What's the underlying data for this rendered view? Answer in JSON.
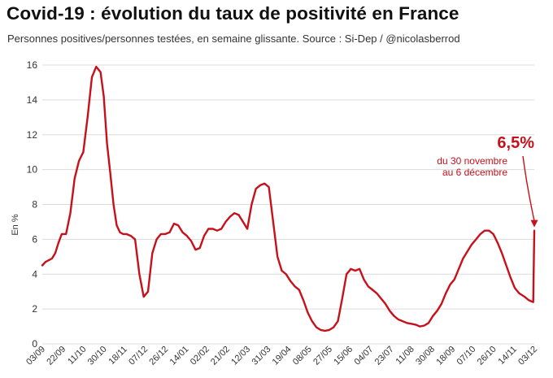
{
  "title": "Covid-19 : évolution du taux de positivité en France",
  "subtitle": "Personnes positives/personnes testées, en semaine glissante. Source : Si-Dep / @nicolasberrod",
  "chart_data": {
    "type": "line",
    "title": "Covid-19 : évolution du taux de positivité en France",
    "xlabel": "",
    "ylabel": "En %",
    "ylim": [
      0,
      16
    ],
    "yticks": [
      0,
      2,
      4,
      6,
      8,
      10,
      12,
      14,
      16
    ],
    "grid": "horizontal",
    "x_tick_labels": [
      "03/09",
      "22/09",
      "11/10",
      "30/10",
      "18/11",
      "07/12",
      "26/12",
      "14/01",
      "02/02",
      "21/02",
      "12/03",
      "31/03",
      "19/04",
      "08/05",
      "27/05",
      "15/06",
      "04/07",
      "23/07",
      "11/08",
      "30/08",
      "18/09",
      "07/10",
      "26/10",
      "14/11",
      "03/12"
    ],
    "line_color": "#c8101a",
    "series": [
      {
        "name": "Taux de positivité",
        "x_unit": "days since 03/09",
        "x": [
          0,
          3,
          6,
          9,
          12,
          15,
          18,
          22,
          26,
          30,
          34,
          38,
          42,
          46,
          50,
          54,
          57,
          60,
          63,
          66,
          69,
          72,
          75,
          78,
          82,
          86,
          90,
          94,
          98,
          102,
          106,
          110,
          114,
          118,
          122,
          126,
          130,
          134,
          138,
          142,
          146,
          150,
          154,
          158,
          162,
          166,
          170,
          174,
          178,
          182,
          186,
          190,
          194,
          198,
          202,
          206,
          210,
          214,
          218,
          222,
          226,
          230,
          234,
          238,
          242,
          246,
          250,
          254,
          258,
          262,
          266,
          270,
          274,
          278,
          282,
          286,
          290,
          294,
          298,
          302,
          306,
          310,
          314,
          318,
          322,
          326,
          330,
          334,
          338,
          342,
          346,
          350,
          354,
          358,
          362,
          366,
          370,
          374,
          378,
          382,
          386,
          390,
          394,
          398,
          402,
          406,
          410,
          414,
          418,
          422,
          426,
          430,
          434,
          438,
          442,
          447,
          451,
          455,
          456
        ],
        "y": [
          4.5,
          4.7,
          4.8,
          4.9,
          5.2,
          5.8,
          6.3,
          6.3,
          7.5,
          9.5,
          10.5,
          11.0,
          13.0,
          15.3,
          15.9,
          15.6,
          14.2,
          11.5,
          9.8,
          8.0,
          6.8,
          6.4,
          6.3,
          6.3,
          6.2,
          6.0,
          4.0,
          2.7,
          3.0,
          5.2,
          6.0,
          6.3,
          6.3,
          6.4,
          6.9,
          6.8,
          6.4,
          6.2,
          5.9,
          5.4,
          5.5,
          6.2,
          6.6,
          6.6,
          6.5,
          6.6,
          7.0,
          7.3,
          7.5,
          7.4,
          7.0,
          6.6,
          8.0,
          8.9,
          9.1,
          9.2,
          9.0,
          7.0,
          5.0,
          4.2,
          4.0,
          3.6,
          3.3,
          3.1,
          2.5,
          1.8,
          1.3,
          0.95,
          0.8,
          0.75,
          0.8,
          0.95,
          1.3,
          2.6,
          4.0,
          4.3,
          4.2,
          4.3,
          3.7,
          3.3,
          3.1,
          2.9,
          2.6,
          2.3,
          1.9,
          1.6,
          1.4,
          1.3,
          1.2,
          1.15,
          1.1,
          1.0,
          1.05,
          1.2,
          1.6,
          1.9,
          2.3,
          2.9,
          3.4,
          3.7,
          4.3,
          4.9,
          5.3,
          5.7,
          6.0,
          6.3,
          6.5,
          6.5,
          6.3,
          5.8,
          5.2,
          4.5,
          3.8,
          3.2,
          2.9,
          2.7,
          2.5,
          2.4,
          6.5
        ]
      }
    ],
    "annotation": {
      "value": "6,5%",
      "line1": "du 30 novembre",
      "line2": "au 6 décembre"
    }
  }
}
